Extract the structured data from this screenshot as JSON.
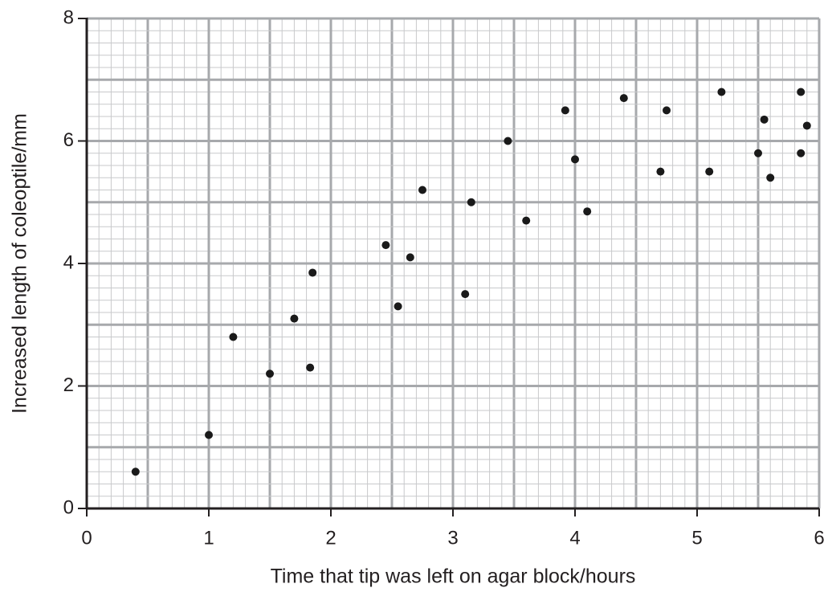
{
  "chart_data": {
    "type": "scatter",
    "x_label": "Time that tip was left on agar block/hours",
    "y_label": "Increased length of coleoptile/mm",
    "xlim": [
      0,
      6
    ],
    "ylim": [
      0,
      8
    ],
    "xticks": [
      0,
      1,
      2,
      3,
      4,
      5,
      6
    ],
    "yticks": [
      0,
      2,
      4,
      6,
      8
    ],
    "grid": true,
    "color": "#1a1a1a",
    "x": [
      0.4,
      1.0,
      1.2,
      1.5,
      1.7,
      1.83,
      1.85,
      2.45,
      2.55,
      2.65,
      2.75,
      3.1,
      3.15,
      3.45,
      3.6,
      3.92,
      4.0,
      4.1,
      4.4,
      4.7,
      4.75,
      5.1,
      5.2,
      5.5,
      5.55,
      5.6,
      5.85,
      5.85,
      5.9
    ],
    "values": [
      0.6,
      1.2,
      2.8,
      2.2,
      3.1,
      2.3,
      3.85,
      4.3,
      3.3,
      4.1,
      5.2,
      3.5,
      5.0,
      6.0,
      4.7,
      6.5,
      5.7,
      4.85,
      6.7,
      5.5,
      6.5,
      5.5,
      6.8,
      5.8,
      6.35,
      5.4,
      5.8,
      6.8,
      6.25
    ]
  }
}
